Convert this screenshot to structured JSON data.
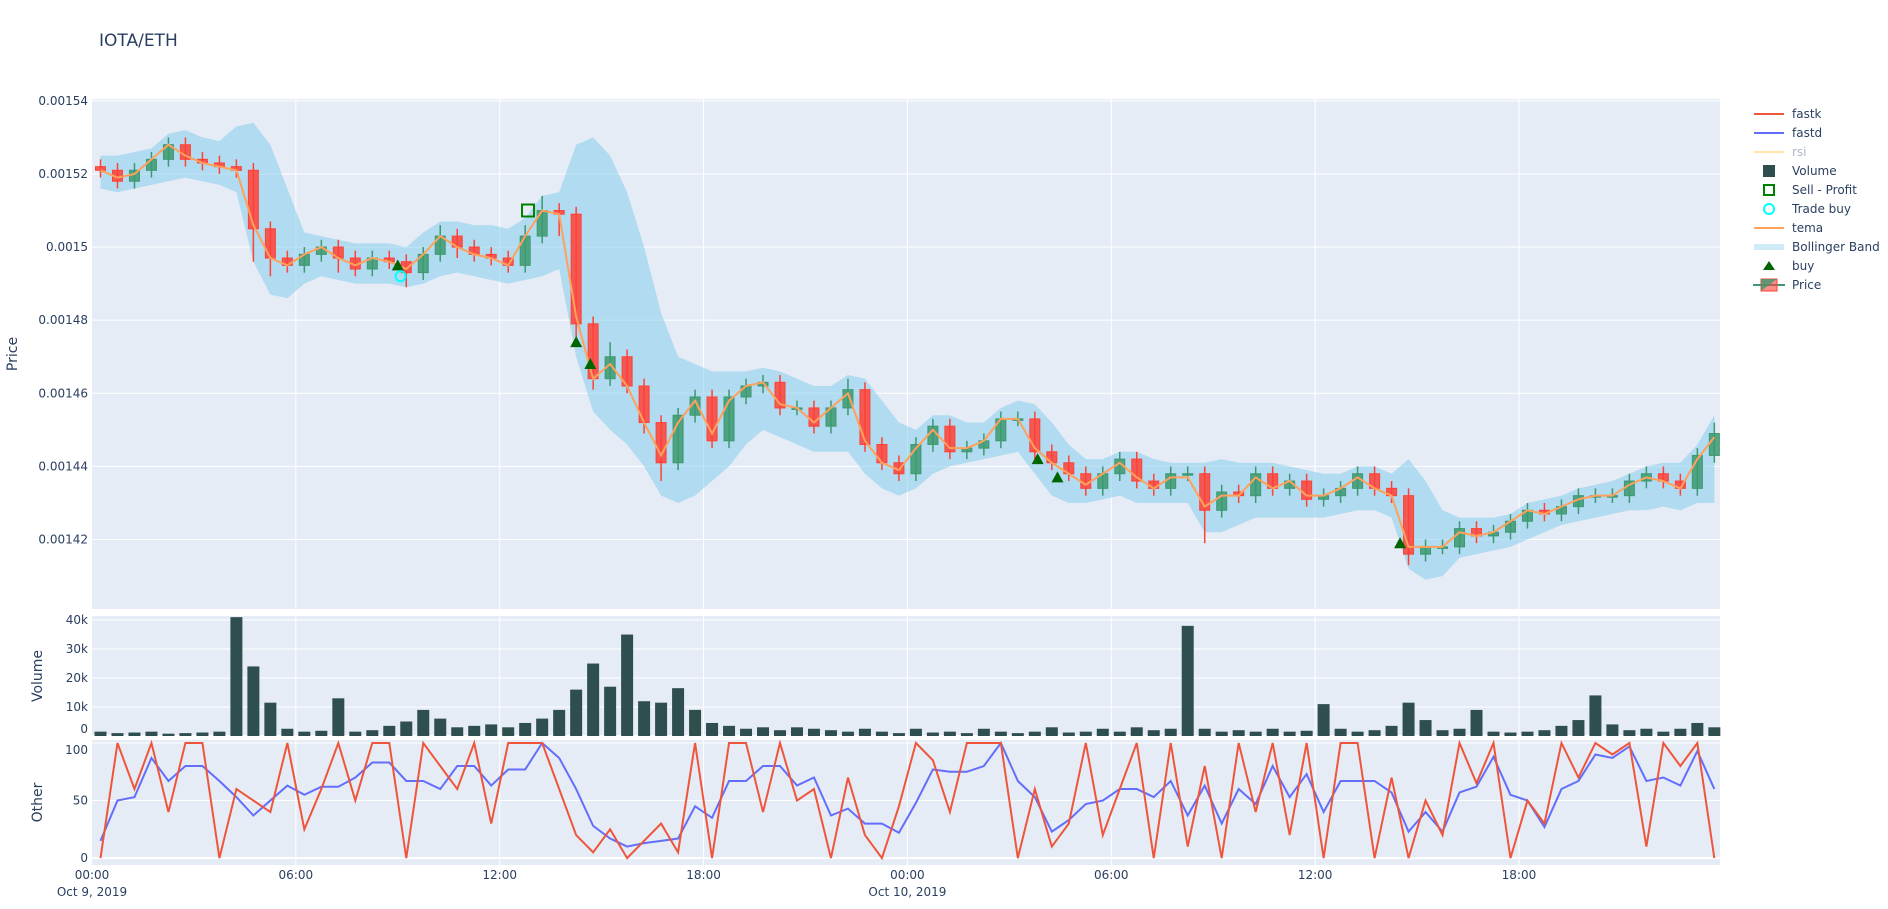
{
  "title": "IOTA/ETH",
  "chart_data": {
    "type": "candlestick",
    "title": "IOTA/ETH",
    "start": "2019-10-09 00:00",
    "timeframe": "30m",
    "x_ticks": [
      {
        "time": "2019-10-09 00:00",
        "label": "00:00",
        "sublabel": "Oct 9, 2019"
      },
      {
        "time": "2019-10-09 06:00",
        "label": "06:00",
        "sublabel": ""
      },
      {
        "time": "2019-10-09 12:00",
        "label": "12:00",
        "sublabel": ""
      },
      {
        "time": "2019-10-09 18:00",
        "label": "18:00",
        "sublabel": ""
      },
      {
        "time": "2019-10-10 00:00",
        "label": "00:00",
        "sublabel": "Oct 10, 2019"
      },
      {
        "time": "2019-10-10 06:00",
        "label": "06:00",
        "sublabel": ""
      },
      {
        "time": "2019-10-10 12:00",
        "label": "12:00",
        "sublabel": ""
      },
      {
        "time": "2019-10-10 18:00",
        "label": "18:00",
        "sublabel": ""
      }
    ],
    "xlim": [
      "2019-10-09 00:00",
      "2019-10-10 23:55"
    ],
    "panels": {
      "price": {
        "ylabel": "Price",
        "ylim": [
          0.001401,
          0.0015405
        ],
        "ticks": [
          0.00142,
          0.00144,
          0.00146,
          0.00148,
          0.0015,
          0.00152,
          0.00154
        ],
        "tick_labels": [
          "0.00142",
          "0.00144",
          "0.00146",
          "0.00148",
          "0.0015",
          "0.00152",
          "0.00154"
        ]
      },
      "volume": {
        "ylabel": "Volume",
        "ylim": [
          0,
          41400
        ],
        "ticks": [
          0,
          10000,
          20000,
          30000,
          40000
        ],
        "tick_labels": [
          "0",
          "10k",
          "20k",
          "30k",
          "40k"
        ]
      },
      "other": {
        "ylabel": "Other",
        "ylim": [
          -6,
          102.6
        ],
        "ticks": [
          0,
          50,
          100
        ],
        "tick_labels": [
          "0",
          "50",
          "100"
        ]
      }
    },
    "grid": true,
    "legend_position": "right",
    "colors": {
      "background": "#e5ecf6",
      "grid": "#ffffff",
      "increasing": "#3d9970",
      "decreasing": "#ff4136",
      "volume": "#2f4f4f",
      "fastk": "#ef553b",
      "fastd": "#636efa",
      "rsi": "#fecb52",
      "tema": "#ffa15a",
      "bollinger": "#87ceeb",
      "buy": "#006400",
      "sell_profit": "#008000",
      "trade_buy": "#00ffff"
    },
    "legend": [
      {
        "name": "fastk",
        "symbol": "line",
        "color": "#ef553b",
        "visible": true
      },
      {
        "name": "fastd",
        "symbol": "line",
        "color": "#636efa",
        "visible": true
      },
      {
        "name": "rsi",
        "symbol": "line",
        "color": "#fecb52",
        "visible": false
      },
      {
        "name": "Volume",
        "symbol": "square",
        "color": "#2f4f4f",
        "visible": true
      },
      {
        "name": "Sell - Profit",
        "symbol": "square-open",
        "color": "#008000",
        "visible": true
      },
      {
        "name": "Trade buy",
        "symbol": "circle-open",
        "color": "#00ffff",
        "visible": true
      },
      {
        "name": "tema",
        "symbol": "line",
        "color": "#ffa15a",
        "visible": true
      },
      {
        "name": "Bollinger Band",
        "symbol": "band",
        "color": "#87ceeb",
        "visible": true
      },
      {
        "name": "buy",
        "symbol": "triangle-up",
        "color": "#006400",
        "visible": true
      },
      {
        "name": "Price",
        "symbol": "candle",
        "color": "#3d9970",
        "visible": true
      }
    ],
    "open": [
      0.001522,
      0.001521,
      0.001518,
      0.001521,
      0.001524,
      0.001528,
      0.001524,
      0.001523,
      0.001522,
      0.001521,
      0.001505,
      0.001497,
      0.001495,
      0.001498,
      0.0015,
      0.001497,
      0.001494,
      0.001497,
      0.001496,
      0.001493,
      0.001498,
      0.001503,
      0.0015,
      0.001498,
      0.001497,
      0.001495,
      0.001503,
      0.00151,
      0.001509,
      0.001479,
      0.001464,
      0.00147,
      0.001462,
      0.001452,
      0.001441,
      0.001454,
      0.001459,
      0.001447,
      0.001459,
      0.001462,
      0.001463,
      0.001456,
      0.001456,
      0.001451,
      0.001456,
      0.001461,
      0.001446,
      0.001441,
      0.001438,
      0.001446,
      0.001451,
      0.001444,
      0.001445,
      0.001447,
      0.001453,
      0.001453,
      0.001444,
      0.001441,
      0.001438,
      0.001434,
      0.001438,
      0.001442,
      0.001436,
      0.001434,
      0.001438,
      0.001438,
      0.001428,
      0.001433,
      0.001432,
      0.001438,
      0.001434,
      0.001436,
      0.001431,
      0.001432,
      0.001434,
      0.001438,
      0.001434,
      0.001432,
      0.001416,
      0.001418,
      0.001418,
      0.001423,
      0.001421,
      0.001422,
      0.001425,
      0.001428,
      0.001427,
      0.001429,
      0.001432,
      0.001432,
      0.001432,
      0.001436,
      0.001438,
      0.001436,
      0.001434,
      0.001443
    ],
    "high": [
      0.001524,
      0.001523,
      0.001523,
      0.001526,
      0.00153,
      0.00153,
      0.001526,
      0.001525,
      0.001524,
      0.001523,
      0.001507,
      0.001499,
      0.0015,
      0.001502,
      0.001502,
      0.001499,
      0.001499,
      0.001499,
      0.001498,
      0.0015,
      0.001506,
      0.001505,
      0.001502,
      0.0015,
      0.001499,
      0.001506,
      0.001514,
      0.001512,
      0.001511,
      0.001481,
      0.001474,
      0.001472,
      0.001464,
      0.001454,
      0.001456,
      0.001461,
      0.001461,
      0.001461,
      0.001464,
      0.001465,
      0.001465,
      0.001458,
      0.001458,
      0.001458,
      0.001464,
      0.001463,
      0.001448,
      0.001443,
      0.001448,
      0.001453,
      0.001453,
      0.001447,
      0.001449,
      0.001455,
      0.001455,
      0.001455,
      0.001446,
      0.001443,
      0.00144,
      0.00144,
      0.001444,
      0.001444,
      0.001438,
      0.00144,
      0.00144,
      0.00144,
      0.001435,
      0.001435,
      0.00144,
      0.00144,
      0.001438,
      0.001438,
      0.001434,
      0.001436,
      0.00144,
      0.00144,
      0.001436,
      0.001434,
      0.00142,
      0.00142,
      0.001425,
      0.001425,
      0.001424,
      0.001427,
      0.00143,
      0.00143,
      0.001431,
      0.001434,
      0.001434,
      0.001434,
      0.001438,
      0.00144,
      0.00144,
      0.001438,
      0.001445,
      0.001452
    ],
    "low": [
      0.001519,
      0.001516,
      0.001516,
      0.001519,
      0.001522,
      0.001522,
      0.001521,
      0.00152,
      0.001519,
      0.001496,
      0.001492,
      0.001493,
      0.001493,
      0.001496,
      0.001493,
      0.001492,
      0.001492,
      0.001494,
      0.001489,
      0.001491,
      0.001496,
      0.001497,
      0.001496,
      0.001495,
      0.001493,
      0.001493,
      0.001501,
      0.001503,
      0.001474,
      0.001461,
      0.001462,
      0.00146,
      0.001449,
      0.001436,
      0.001439,
      0.001452,
      0.001445,
      0.001445,
      0.001457,
      0.00146,
      0.001454,
      0.001454,
      0.001449,
      0.001449,
      0.001454,
      0.001444,
      0.001439,
      0.001436,
      0.001436,
      0.001444,
      0.001442,
      0.001442,
      0.001443,
      0.001445,
      0.001451,
      0.001442,
      0.001439,
      0.001436,
      0.001432,
      0.001432,
      0.001436,
      0.001434,
      0.001432,
      0.001432,
      0.001436,
      0.001419,
      0.001426,
      0.00143,
      0.00143,
      0.001432,
      0.001432,
      0.001429,
      0.001429,
      0.00143,
      0.001432,
      0.001432,
      0.00143,
      0.001413,
      0.001414,
      0.001416,
      0.001416,
      0.001419,
      0.001419,
      0.00142,
      0.001423,
      0.001425,
      0.001425,
      0.001427,
      0.00143,
      0.00143,
      0.00143,
      0.001434,
      0.001434,
      0.001432,
      0.001432,
      0.001441
    ],
    "close": [
      0.001521,
      0.001518,
      0.001521,
      0.001524,
      0.001528,
      0.001524,
      0.001523,
      0.001522,
      0.001521,
      0.001505,
      0.001497,
      0.001495,
      0.001498,
      0.0015,
      0.001497,
      0.001494,
      0.001497,
      0.001496,
      0.001493,
      0.001498,
      0.001503,
      0.0015,
      0.001498,
      0.001497,
      0.001495,
      0.001503,
      0.00151,
      0.001509,
      0.001479,
      0.001464,
      0.00147,
      0.001462,
      0.001452,
      0.001441,
      0.001454,
      0.001459,
      0.001447,
      0.001459,
      0.001462,
      0.001463,
      0.001456,
      0.001456,
      0.001451,
      0.001456,
      0.001461,
      0.001446,
      0.001441,
      0.001438,
      0.001446,
      0.001451,
      0.001444,
      0.001445,
      0.001447,
      0.001453,
      0.001453,
      0.001444,
      0.001441,
      0.001438,
      0.001434,
      0.001438,
      0.001442,
      0.001436,
      0.001434,
      0.001438,
      0.001438,
      0.001428,
      0.001433,
      0.001432,
      0.001438,
      0.001434,
      0.001436,
      0.001431,
      0.001432,
      0.001434,
      0.001438,
      0.001434,
      0.001432,
      0.001416,
      0.001418,
      0.001418,
      0.001423,
      0.001421,
      0.001422,
      0.001425,
      0.001428,
      0.001427,
      0.001429,
      0.001432,
      0.001432,
      0.001432,
      0.001436,
      0.001438,
      0.001436,
      0.001434,
      0.001443,
      0.001449
    ],
    "tema": [
      0.001521,
      0.001519,
      0.00152,
      0.001524,
      0.001528,
      0.001525,
      0.001523,
      0.001522,
      0.001521,
      0.001506,
      0.001497,
      0.001495,
      0.001498,
      0.0015,
      0.001497,
      0.001495,
      0.001497,
      0.001496,
      0.001494,
      0.001498,
      0.001503,
      0.0015,
      0.001498,
      0.001497,
      0.001495,
      0.001503,
      0.00151,
      0.001509,
      0.001481,
      0.001464,
      0.001468,
      0.001462,
      0.001452,
      0.001443,
      0.001452,
      0.001458,
      0.001449,
      0.001458,
      0.001462,
      0.001463,
      0.001457,
      0.001456,
      0.001452,
      0.001456,
      0.00146,
      0.001447,
      0.001441,
      0.001439,
      0.001445,
      0.00145,
      0.001445,
      0.001445,
      0.001447,
      0.001453,
      0.001453,
      0.001445,
      0.001441,
      0.001438,
      0.001435,
      0.001438,
      0.001441,
      0.001437,
      0.001434,
      0.001437,
      0.001437,
      0.001429,
      0.001432,
      0.001432,
      0.001437,
      0.001434,
      0.001436,
      0.001432,
      0.001432,
      0.001434,
      0.001437,
      0.001434,
      0.001432,
      0.001418,
      0.001418,
      0.001418,
      0.001422,
      0.001421,
      0.001422,
      0.001425,
      0.001428,
      0.001427,
      0.001429,
      0.001431,
      0.001432,
      0.001432,
      0.001435,
      0.001437,
      0.001436,
      0.001434,
      0.001442,
      0.001448
    ],
    "bollinger_upper": [
      0.001525,
      0.001525,
      0.001526,
      0.001527,
      0.001531,
      0.001532,
      0.00153,
      0.001529,
      0.001533,
      0.001534,
      0.001528,
      0.001516,
      0.001504,
      0.001503,
      0.001502,
      0.001501,
      0.001501,
      0.001501,
      0.0015,
      0.001504,
      0.001507,
      0.001507,
      0.001506,
      0.001506,
      0.001505,
      0.001508,
      0.001514,
      0.001515,
      0.001528,
      0.00153,
      0.001525,
      0.001515,
      0.0015,
      0.001482,
      0.00147,
      0.001468,
      0.001466,
      0.001466,
      0.001466,
      0.001467,
      0.001466,
      0.001464,
      0.001462,
      0.001462,
      0.001465,
      0.001464,
      0.001458,
      0.001452,
      0.00145,
      0.001454,
      0.001454,
      0.001452,
      0.001452,
      0.001456,
      0.001458,
      0.001457,
      0.001452,
      0.001446,
      0.001442,
      0.001442,
      0.001444,
      0.001444,
      0.001442,
      0.001441,
      0.001441,
      0.001441,
      0.001442,
      0.001441,
      0.001441,
      0.001441,
      0.00144,
      0.001439,
      0.001438,
      0.001438,
      0.00144,
      0.00144,
      0.001438,
      0.001442,
      0.001436,
      0.001428,
      0.001426,
      0.001426,
      0.001426,
      0.001427,
      0.00143,
      0.001431,
      0.001432,
      0.001434,
      0.001435,
      0.001436,
      0.001438,
      0.00144,
      0.001441,
      0.001441,
      0.001446,
      0.001454
    ],
    "bollinger_lower": [
      0.001516,
      0.001515,
      0.001516,
      0.001517,
      0.001518,
      0.001519,
      0.001518,
      0.001517,
      0.001515,
      0.001496,
      0.001487,
      0.001486,
      0.00149,
      0.001492,
      0.001491,
      0.00149,
      0.00149,
      0.00149,
      0.001489,
      0.00149,
      0.001492,
      0.001493,
      0.001492,
      0.001491,
      0.00149,
      0.001491,
      0.001492,
      0.001494,
      0.00147,
      0.001455,
      0.00145,
      0.001446,
      0.00144,
      0.001432,
      0.00143,
      0.001432,
      0.001436,
      0.00144,
      0.001446,
      0.00145,
      0.001448,
      0.001446,
      0.001444,
      0.001444,
      0.001444,
      0.001438,
      0.001434,
      0.001432,
      0.001434,
      0.001438,
      0.00144,
      0.001441,
      0.001442,
      0.001443,
      0.001444,
      0.001438,
      0.001432,
      0.00143,
      0.00143,
      0.001431,
      0.001432,
      0.00143,
      0.00143,
      0.00143,
      0.00143,
      0.001422,
      0.001422,
      0.001424,
      0.001426,
      0.001426,
      0.001426,
      0.001426,
      0.001426,
      0.001427,
      0.001428,
      0.001428,
      0.001426,
      0.001412,
      0.001409,
      0.00141,
      0.001415,
      0.001416,
      0.001417,
      0.001418,
      0.00142,
      0.001422,
      0.001424,
      0.001425,
      0.001426,
      0.001427,
      0.001428,
      0.001428,
      0.001429,
      0.001428,
      0.00143,
      0.00143
    ],
    "volume": [
      1500,
      1000,
      1200,
      1500,
      800,
      1000,
      1200,
      1500,
      41000,
      24000,
      11500,
      2500,
      1500,
      1800,
      13000,
      1500,
      2000,
      3500,
      5000,
      9000,
      6000,
      3000,
      3500,
      4000,
      3000,
      4500,
      6000,
      9000,
      16000,
      25000,
      17000,
      35000,
      12000,
      11500,
      16500,
      9000,
      4500,
      3500,
      2500,
      3000,
      2000,
      3000,
      2500,
      2000,
      1500,
      2500,
      1500,
      1000,
      2500,
      1200,
      1500,
      1000,
      2500,
      1500,
      1000,
      1500,
      3000,
      1200,
      1500,
      2500,
      1500,
      3000,
      2000,
      2500,
      38000,
      2500,
      1500,
      2000,
      1500,
      2500,
      1500,
      1800,
      11000,
      2500,
      1500,
      2000,
      3500,
      11500,
      5500,
      2000,
      2500,
      9000,
      1500,
      1200,
      1500,
      2000,
      3500,
      5500,
      14000,
      4000,
      2000,
      2500,
      1500,
      2500,
      4500,
      3000
    ],
    "fastk": [
      0,
      100,
      60,
      100,
      40,
      100,
      100,
      0,
      60,
      50,
      40,
      100,
      25,
      60,
      100,
      50,
      100,
      100,
      0,
      100,
      80,
      60,
      100,
      30,
      100,
      100,
      100,
      60,
      20,
      5,
      25,
      0,
      15,
      30,
      5,
      100,
      0,
      100,
      100,
      40,
      100,
      50,
      60,
      0,
      70,
      20,
      0,
      45,
      100,
      85,
      40,
      100,
      100,
      100,
      0,
      60,
      10,
      30,
      100,
      20,
      60,
      100,
      0,
      100,
      10,
      80,
      0,
      100,
      40,
      100,
      20,
      100,
      0,
      100,
      100,
      0,
      70,
      0,
      50,
      20,
      100,
      65,
      100,
      0,
      50,
      30,
      100,
      70,
      100,
      90,
      100,
      10,
      100,
      80,
      100,
      0
    ],
    "fastd": [
      15,
      50,
      53,
      87,
      67,
      80,
      80,
      67,
      53,
      37,
      50,
      63,
      55,
      62,
      62,
      70,
      83,
      83,
      67,
      67,
      60,
      80,
      80,
      63,
      77,
      77,
      100,
      87,
      60,
      28,
      17,
      10,
      13,
      15,
      17,
      45,
      35,
      67,
      67,
      80,
      80,
      63,
      70,
      37,
      43,
      30,
      30,
      22,
      48,
      77,
      75,
      75,
      80,
      100,
      67,
      53,
      23,
      33,
      47,
      50,
      60,
      60,
      53,
      67,
      37,
      63,
      30,
      60,
      47,
      80,
      53,
      73,
      40,
      67,
      67,
      67,
      57,
      23,
      40,
      23,
      57,
      62,
      88,
      55,
      50,
      27,
      60,
      67,
      90,
      87,
      97,
      67,
      70,
      63,
      93,
      60
    ],
    "markers": {
      "buy": [
        {
          "time": "2019-10-09 09:00",
          "price": 0.001495
        },
        {
          "time": "2019-10-09 14:15",
          "price": 0.001474
        },
        {
          "time": "2019-10-09 14:40",
          "price": 0.001468
        },
        {
          "time": "2019-10-10 03:50",
          "price": 0.001442
        },
        {
          "time": "2019-10-10 04:25",
          "price": 0.001437
        },
        {
          "time": "2019-10-10 14:30",
          "price": 0.001419
        }
      ],
      "trade_buy": [
        {
          "time": "2019-10-09 09:05",
          "price": 0.001492
        }
      ],
      "sell_profit": [
        {
          "time": "2019-10-09 12:50",
          "price": 0.00151
        }
      ]
    }
  }
}
